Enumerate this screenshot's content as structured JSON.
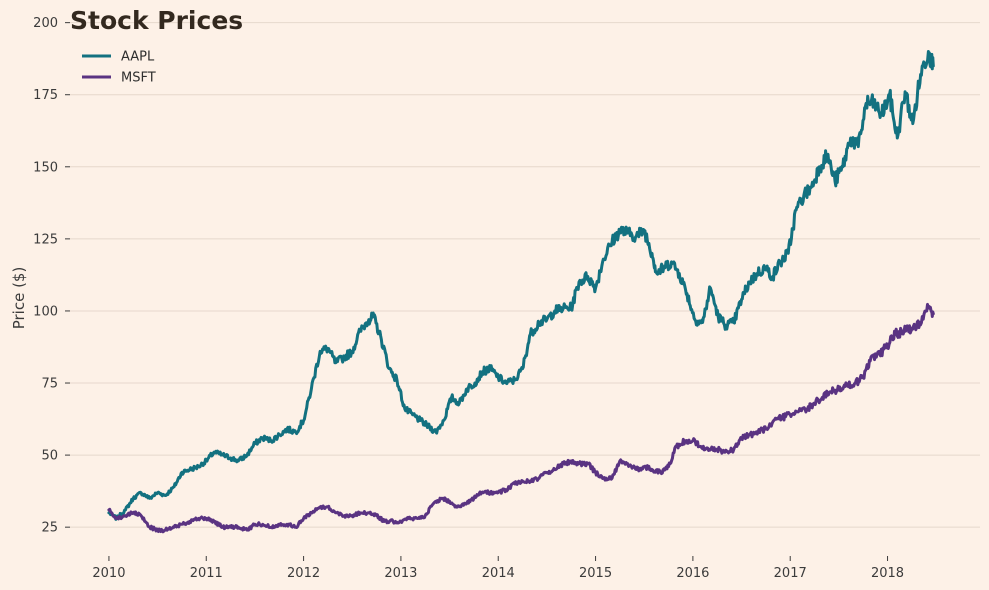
{
  "chart_data": {
    "type": "line",
    "title": "Stock Prices",
    "xlabel": "",
    "ylabel": "Price ($)",
    "xlim": [
      2009.6,
      2018.95
    ],
    "ylim": [
      15,
      203
    ],
    "x_ticks": [
      2010,
      2011,
      2012,
      2013,
      2014,
      2015,
      2016,
      2017,
      2018
    ],
    "x_tick_labels": [
      "2010",
      "2011",
      "2012",
      "2013",
      "2014",
      "2015",
      "2016",
      "2017",
      "2018"
    ],
    "y_ticks": [
      25,
      50,
      75,
      100,
      125,
      150,
      175,
      200
    ],
    "y_tick_labels": [
      "25",
      "50",
      "75",
      "100",
      "125",
      "150",
      "175",
      "200"
    ],
    "grid": "horizontal",
    "legend": "top-left",
    "series": [
      {
        "name": "AAPL",
        "color": "#137180",
        "x": [
          2010.0,
          2010.08,
          2010.17,
          2010.25,
          2010.33,
          2010.42,
          2010.5,
          2010.58,
          2010.67,
          2010.75,
          2010.83,
          2010.92,
          2011.0,
          2011.08,
          2011.17,
          2011.25,
          2011.33,
          2011.42,
          2011.5,
          2011.58,
          2011.67,
          2011.75,
          2011.83,
          2011.92,
          2012.0,
          2012.08,
          2012.17,
          2012.25,
          2012.33,
          2012.42,
          2012.5,
          2012.58,
          2012.67,
          2012.72,
          2012.8,
          2012.88,
          2012.96,
          2013.04,
          2013.12,
          2013.2,
          2013.28,
          2013.36,
          2013.44,
          2013.52,
          2013.6,
          2013.68,
          2013.76,
          2013.84,
          2013.92,
          2014.0,
          2014.08,
          2014.17,
          2014.25,
          2014.33,
          2014.42,
          2014.5,
          2014.58,
          2014.67,
          2014.75,
          2014.83,
          2014.92,
          2015.0,
          2015.08,
          2015.17,
          2015.25,
          2015.33,
          2015.42,
          2015.5,
          2015.58,
          2015.63,
          2015.7,
          2015.78,
          2015.86,
          2015.94,
          2016.02,
          2016.1,
          2016.18,
          2016.26,
          2016.34,
          2016.42,
          2016.5,
          2016.58,
          2016.66,
          2016.74,
          2016.82,
          2016.9,
          2016.98,
          2017.06,
          2017.14,
          2017.22,
          2017.3,
          2017.38,
          2017.46,
          2017.54,
          2017.62,
          2017.7,
          2017.78,
          2017.86,
          2017.94,
          2018.02,
          2018.1,
          2018.18,
          2018.26,
          2018.34,
          2018.42,
          2018.47
        ],
        "values": [
          30,
          28,
          31,
          35,
          37,
          35,
          37,
          36,
          39,
          44,
          45,
          46,
          48,
          51,
          50,
          49,
          48,
          50,
          54,
          56,
          55,
          57,
          59,
          58,
          62,
          73,
          86,
          87,
          82,
          84,
          86,
          93,
          97,
          98,
          90,
          80,
          76,
          66,
          64,
          62,
          60,
          58,
          62,
          70,
          68,
          73,
          75,
          79,
          80,
          77,
          75,
          76,
          80,
          92,
          96,
          97,
          100,
          101,
          101,
          110,
          112,
          108,
          118,
          124,
          128,
          127,
          126,
          128,
          120,
          113,
          115,
          117,
          113,
          106,
          97,
          96,
          108,
          98,
          95,
          96,
          104,
          110,
          113,
          115,
          112,
          117,
          120,
          135,
          140,
          143,
          150,
          154,
          145,
          150,
          160,
          157,
          172,
          172,
          168,
          175,
          160,
          176,
          165,
          182,
          190,
          185
        ]
      },
      {
        "name": "MSFT",
        "color": "#5a3382",
        "x": [
          2010.0,
          2010.08,
          2010.17,
          2010.25,
          2010.33,
          2010.42,
          2010.5,
          2010.58,
          2010.67,
          2010.75,
          2010.83,
          2010.92,
          2011.0,
          2011.08,
          2011.17,
          2011.25,
          2011.33,
          2011.42,
          2011.5,
          2011.58,
          2011.67,
          2011.75,
          2011.83,
          2011.92,
          2012.0,
          2012.08,
          2012.17,
          2012.25,
          2012.33,
          2012.42,
          2012.5,
          2012.58,
          2012.67,
          2012.75,
          2012.83,
          2012.92,
          2013.0,
          2013.08,
          2013.17,
          2013.25,
          2013.33,
          2013.42,
          2013.5,
          2013.58,
          2013.67,
          2013.75,
          2013.83,
          2013.92,
          2014.0,
          2014.08,
          2014.17,
          2014.25,
          2014.33,
          2014.42,
          2014.5,
          2014.58,
          2014.67,
          2014.75,
          2014.83,
          2014.92,
          2015.0,
          2015.08,
          2015.17,
          2015.25,
          2015.33,
          2015.42,
          2015.5,
          2015.58,
          2015.67,
          2015.75,
          2015.83,
          2015.92,
          2016.0,
          2016.08,
          2016.17,
          2016.25,
          2016.33,
          2016.42,
          2016.5,
          2016.58,
          2016.67,
          2016.75,
          2016.83,
          2016.92,
          2017.0,
          2017.08,
          2017.17,
          2017.25,
          2017.33,
          2017.42,
          2017.5,
          2017.58,
          2017.67,
          2017.75,
          2017.83,
          2017.92,
          2018.0,
          2018.08,
          2018.17,
          2018.25,
          2018.33,
          2018.42,
          2018.47
        ],
        "values": [
          31,
          28,
          29,
          30,
          29,
          25,
          24,
          24,
          25,
          26,
          27,
          28,
          28,
          27,
          25,
          25,
          25,
          24,
          26,
          26,
          25,
          26,
          26,
          25,
          28,
          30,
          32,
          32,
          30,
          29,
          29,
          30,
          30,
          29,
          27,
          27,
          27,
          28,
          28,
          29,
          33,
          35,
          34,
          32,
          33,
          35,
          37,
          37,
          37,
          38,
          40,
          41,
          41,
          42,
          44,
          45,
          47,
          48,
          47,
          47,
          44,
          42,
          42,
          48,
          47,
          45,
          46,
          45,
          44,
          46,
          53,
          55,
          55,
          53,
          52,
          52,
          51,
          52,
          56,
          57,
          58,
          59,
          62,
          63,
          64,
          65,
          66,
          68,
          70,
          72,
          73,
          74,
          75,
          77,
          84,
          85,
          88,
          92,
          93,
          94,
          96,
          101,
          99
        ]
      }
    ]
  }
}
